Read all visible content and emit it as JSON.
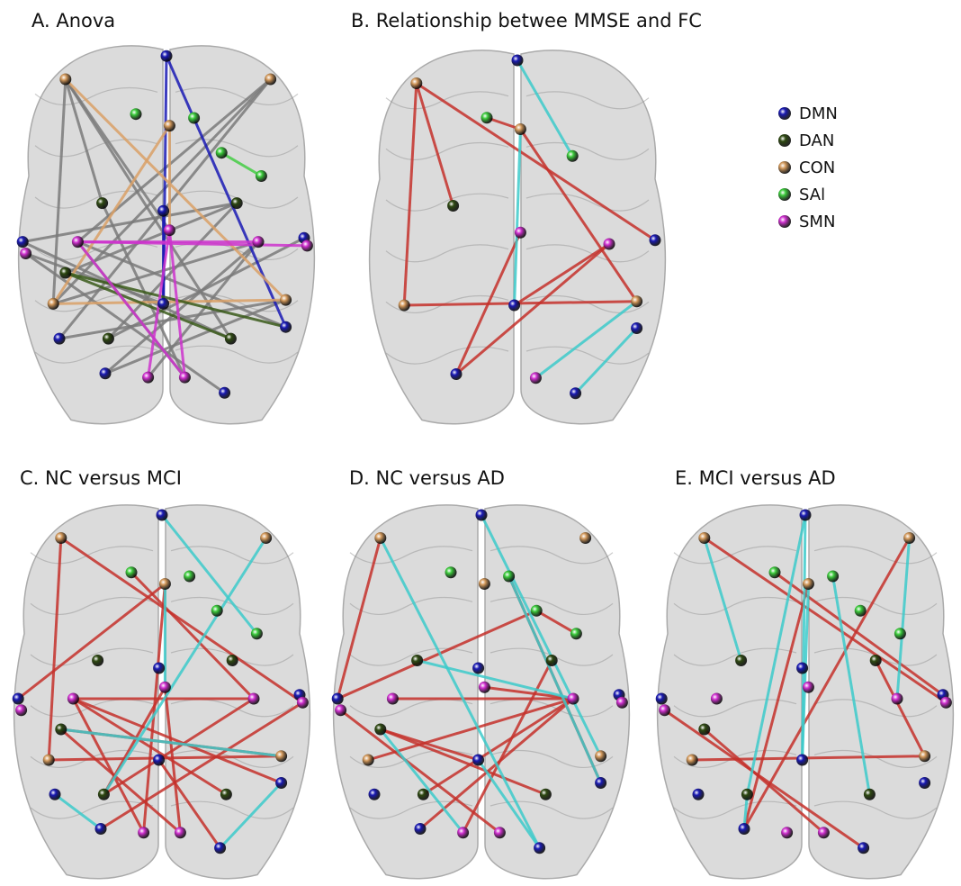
{
  "panels": [
    {
      "title": "A. Anova"
    },
    {
      "title": "B. Relationship betwee MMSE and FC"
    },
    {
      "title": "C. NC versus MCI"
    },
    {
      "title": "D. NC versus AD"
    },
    {
      "title": "E. MCI versus AD"
    }
  ],
  "legend": {
    "items": [
      {
        "label": "DMN",
        "color": "#1a1ab4"
      },
      {
        "label": "DAN",
        "color": "#2f4a12"
      },
      {
        "label": "CON",
        "color": "#d49a5c"
      },
      {
        "label": "SAl",
        "color": "#3ccc3c"
      },
      {
        "label": "SMN",
        "color": "#d030d0"
      }
    ]
  }
}
